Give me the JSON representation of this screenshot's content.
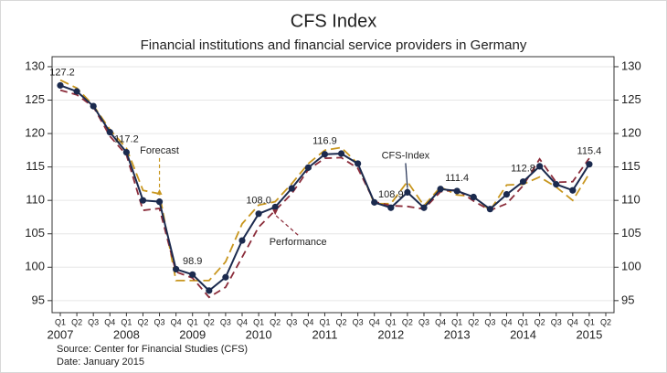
{
  "chart_data": {
    "type": "line",
    "title": "CFS Index",
    "subtitle": "Financial institutions and financial service providers in Germany",
    "categories": [
      "Q1",
      "Q2",
      "Q3",
      "Q4",
      "Q1",
      "Q2",
      "Q3",
      "Q4",
      "Q1",
      "Q2",
      "Q3",
      "Q4",
      "Q1",
      "Q2",
      "Q3",
      "Q4",
      "Q1",
      "Q2",
      "Q3",
      "Q4",
      "Q1",
      "Q2",
      "Q3",
      "Q4",
      "Q1",
      "Q2",
      "Q3",
      "Q4",
      "Q1",
      "Q2",
      "Q3",
      "Q4",
      "Q1",
      "Q2"
    ],
    "years": [
      "2007",
      "2008",
      "2009",
      "2010",
      "2011",
      "2012",
      "2013",
      "2014",
      "2015"
    ],
    "series": [
      {
        "name": "CFS-Index",
        "color": "#1b2a4e",
        "values": [
          127.2,
          126.3,
          124.1,
          120.2,
          117.2,
          110.0,
          109.8,
          99.7,
          98.9,
          96.5,
          98.5,
          104.0,
          108.0,
          109.0,
          111.8,
          114.9,
          116.9,
          117.0,
          115.5,
          109.7,
          108.9,
          111.2,
          108.9,
          111.7,
          111.4,
          110.5,
          108.7,
          110.9,
          112.8,
          115.1,
          112.4,
          111.5,
          115.4,
          null
        ],
        "value_labels": [
          "127.2",
          null,
          null,
          null,
          "117.2",
          null,
          null,
          null,
          "98.9",
          null,
          null,
          null,
          "108.0",
          null,
          null,
          null,
          "116.9",
          null,
          null,
          null,
          "108.9",
          null,
          null,
          null,
          "111.4",
          null,
          null,
          null,
          "112.8",
          null,
          null,
          null,
          "115.4",
          null
        ]
      },
      {
        "name": "Forecast",
        "color": "#c8961e",
        "values": [
          128.0,
          126.8,
          124.2,
          120.6,
          117.8,
          111.5,
          111.0,
          98.0,
          98.0,
          98.0,
          100.8,
          106.5,
          109.3,
          109.8,
          112.5,
          115.5,
          117.5,
          117.9,
          115.5,
          109.5,
          109.5,
          112.8,
          109.2,
          112.0,
          110.8,
          110.6,
          108.5,
          112.3,
          112.4,
          113.5,
          112.0,
          110.0,
          114.0,
          null
        ]
      },
      {
        "name": "Performance",
        "color": "#8b2c3a",
        "values": [
          126.5,
          125.8,
          124.0,
          119.6,
          116.8,
          108.5,
          108.8,
          99.3,
          98.4,
          95.5,
          97.0,
          101.5,
          106.0,
          108.5,
          111.0,
          114.6,
          116.3,
          116.4,
          114.8,
          109.8,
          109.2,
          109.1,
          108.7,
          111.3,
          111.6,
          109.9,
          108.5,
          109.5,
          112.2,
          116.2,
          112.7,
          112.8,
          116.3,
          null
        ]
      }
    ],
    "ylim": [
      93.2,
      131.5
    ],
    "yticks": [
      95,
      100,
      105,
      110,
      115,
      120,
      125,
      130
    ],
    "y2lim": [
      93.2,
      131.5
    ],
    "y2ticks": [
      95,
      100,
      105,
      110,
      115,
      120,
      125,
      130
    ],
    "grid": true,
    "source": "Source: Center for Financial Studies (CFS)",
    "date": "Date: January 2015"
  }
}
